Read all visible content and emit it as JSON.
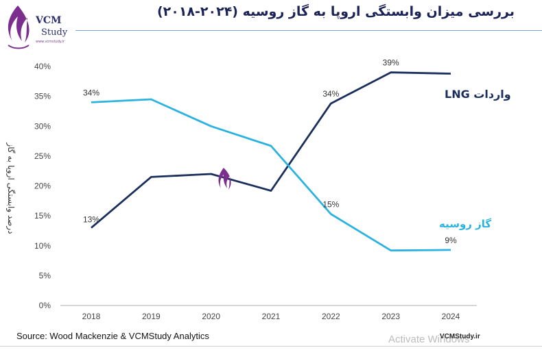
{
  "header": {
    "title": "بررسی میزان وابستگی اروپا به گاز روسیه (۲۰۲۴-۲۰۱۸)",
    "logo_text_1": "VCM",
    "logo_text_2": "Study",
    "logo_site": "www.vcmstudy.ir"
  },
  "footer": {
    "source": "Source: Wood Mackenzie & VCMStudy Analytics",
    "site": "VCMStudy.ir",
    "watermark": "Activate Windows"
  },
  "colors": {
    "lng": "#1a2e5c",
    "gas": "#2ab3e0",
    "title": "#1b2255"
  },
  "chart_data": {
    "type": "line",
    "title": "بررسی میزان وابستگی اروپا به گاز روسیه (۲۰۲۴-۲۰۱۸)",
    "xlabel": "",
    "ylabel": "درصد وابستگی اروپا به گاز",
    "x": [
      "2018",
      "2019",
      "2020",
      "2021",
      "2022",
      "2023",
      "2024"
    ],
    "ylim": [
      0,
      40
    ],
    "yticks": [
      "0%",
      "5%",
      "10%",
      "15%",
      "20%",
      "25%",
      "30%",
      "35%",
      "40%"
    ],
    "grid": false,
    "series": [
      {
        "name": "واردات LNG",
        "values": [
          13,
          21.5,
          22,
          19.2,
          33.8,
          39,
          38.8
        ],
        "labels": [
          "13%",
          "",
          "",
          "",
          "34%",
          "39%",
          ""
        ]
      },
      {
        "name": "گاز روسیه",
        "values": [
          34,
          34.5,
          30,
          26.7,
          15.3,
          9.2,
          9.3
        ],
        "labels": [
          "34%",
          "",
          "",
          "",
          "15%",
          "",
          "9%"
        ]
      }
    ]
  }
}
